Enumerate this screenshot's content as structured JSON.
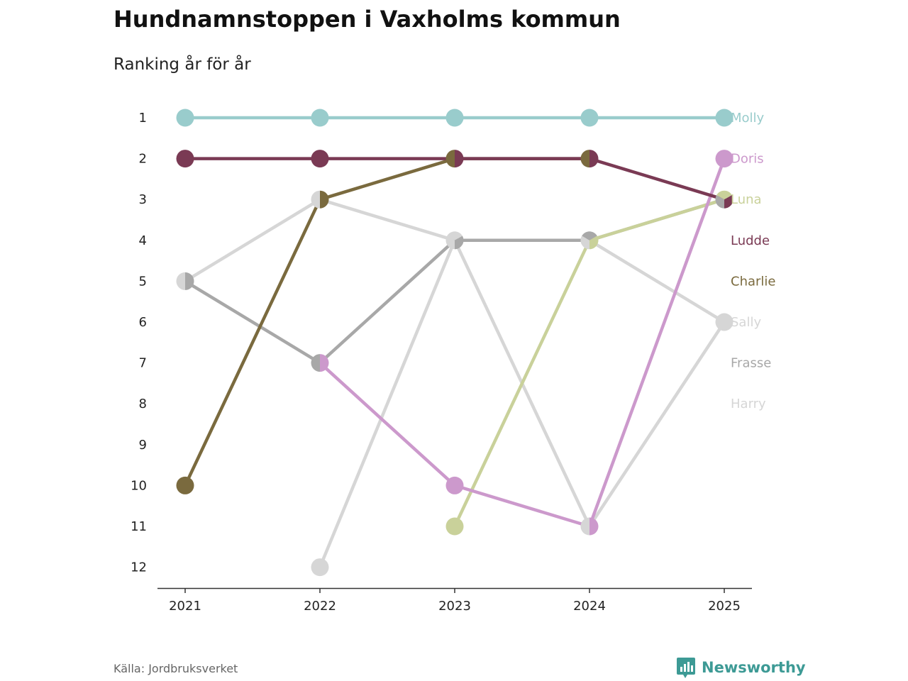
{
  "header": {
    "title": "Hundnamnstoppen i Vaxholms kommun",
    "subtitle": "Ranking år för år"
  },
  "footer": {
    "source": "Källa: Jordbruksverket",
    "brand": "Newsworthy",
    "brand_icon": "newsworthy-logo-icon",
    "brand_color": "#3d9a95"
  },
  "chart_data": {
    "type": "line",
    "title": "Hundnamnstoppen i Vaxholms kommun",
    "subtitle": "Ranking år för år",
    "xlabel": "",
    "ylabel": "",
    "x": [
      "2021",
      "2022",
      "2023",
      "2024",
      "2025"
    ],
    "y_ticks": [
      "1",
      "2",
      "3",
      "4",
      "5",
      "6",
      "7",
      "8",
      "9",
      "10",
      "11",
      "12"
    ],
    "ylim": [
      1,
      12
    ],
    "y_reversed": true,
    "grid": false,
    "legend": "direct labels right",
    "series": [
      {
        "name": "Harry",
        "color": "#d6d6d6",
        "values": [
          null,
          12,
          4,
          11,
          6
        ]
      },
      {
        "name": "Sally",
        "color": "#d6d6d6",
        "values": [
          5,
          3,
          4,
          4,
          6
        ]
      },
      {
        "name": "Frasse",
        "color": "#a8a8a8",
        "values": [
          5,
          7,
          4,
          4,
          3
        ]
      },
      {
        "name": "Luna",
        "color": "#c9d19a",
        "values": [
          null,
          null,
          11,
          4,
          3
        ]
      },
      {
        "name": "Doris",
        "color": "#cc99cc",
        "values": [
          null,
          7,
          10,
          11,
          2
        ]
      },
      {
        "name": "Charlie",
        "color": "#7a6a3e",
        "values": [
          10,
          3,
          2,
          2,
          null
        ]
      },
      {
        "name": "Ludde",
        "color": "#7a3a54",
        "values": [
          2,
          2,
          2,
          2,
          3
        ]
      },
      {
        "name": "Molly",
        "color": "#99cccc",
        "values": [
          1,
          1,
          1,
          1,
          1
        ]
      }
    ],
    "labels": [
      {
        "name": "Molly",
        "color": "#99cccc"
      },
      {
        "name": "Doris",
        "color": "#cc99cc"
      },
      {
        "name": "Luna",
        "color": "#c9d19a"
      },
      {
        "name": "Ludde",
        "color": "#7a3a54"
      },
      {
        "name": "Charlie",
        "color": "#7a6a3e"
      },
      {
        "name": "Sally",
        "color": "#d6d6d6"
      },
      {
        "name": "Frasse",
        "color": "#a8a8a8"
      },
      {
        "name": "Harry",
        "color": "#d6d6d6"
      }
    ]
  }
}
